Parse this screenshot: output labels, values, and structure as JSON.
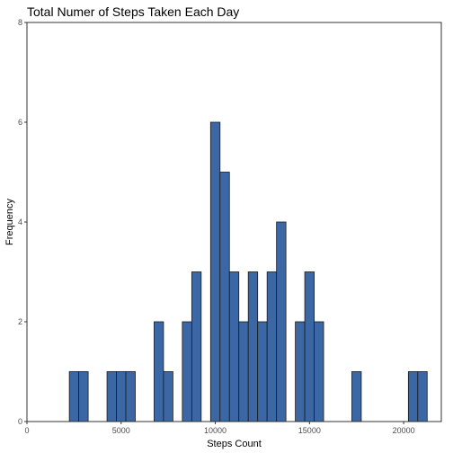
{
  "chart_data": {
    "type": "bar",
    "title": "Total Numer of Steps Taken Each Day",
    "xlabel": "Steps Count",
    "ylabel": "Frequency",
    "xlim": [
      0,
      22000
    ],
    "ylim": [
      0,
      8
    ],
    "xticks": [
      0,
      5000,
      10000,
      15000,
      20000
    ],
    "yticks": [
      0,
      2,
      4,
      6,
      8
    ],
    "bin_width": 500,
    "bins": [
      {
        "start": 2250,
        "end": 2750,
        "count": 1
      },
      {
        "start": 2750,
        "end": 3250,
        "count": 1
      },
      {
        "start": 4250,
        "end": 4750,
        "count": 1
      },
      {
        "start": 4750,
        "end": 5250,
        "count": 1
      },
      {
        "start": 5250,
        "end": 5750,
        "count": 1
      },
      {
        "start": 6750,
        "end": 7250,
        "count": 2
      },
      {
        "start": 7250,
        "end": 7750,
        "count": 1
      },
      {
        "start": 8250,
        "end": 8750,
        "count": 2
      },
      {
        "start": 8750,
        "end": 9250,
        "count": 3
      },
      {
        "start": 9750,
        "end": 10250,
        "count": 6
      },
      {
        "start": 10250,
        "end": 10750,
        "count": 5
      },
      {
        "start": 10750,
        "end": 11250,
        "count": 3
      },
      {
        "start": 11250,
        "end": 11750,
        "count": 2
      },
      {
        "start": 11750,
        "end": 12250,
        "count": 3
      },
      {
        "start": 12250,
        "end": 12750,
        "count": 2
      },
      {
        "start": 12750,
        "end": 13250,
        "count": 3
      },
      {
        "start": 13250,
        "end": 13750,
        "count": 4
      },
      {
        "start": 14250,
        "end": 14750,
        "count": 2
      },
      {
        "start": 14750,
        "end": 15250,
        "count": 3
      },
      {
        "start": 15250,
        "end": 15750,
        "count": 2
      },
      {
        "start": 17250,
        "end": 17750,
        "count": 1
      },
      {
        "start": 20250,
        "end": 20750,
        "count": 1
      },
      {
        "start": 20750,
        "end": 21250,
        "count": 1
      }
    ],
    "bar_color": "#3c67a5",
    "bar_edge_color": "#1a1a1a",
    "grid": false,
    "legend": "none"
  }
}
